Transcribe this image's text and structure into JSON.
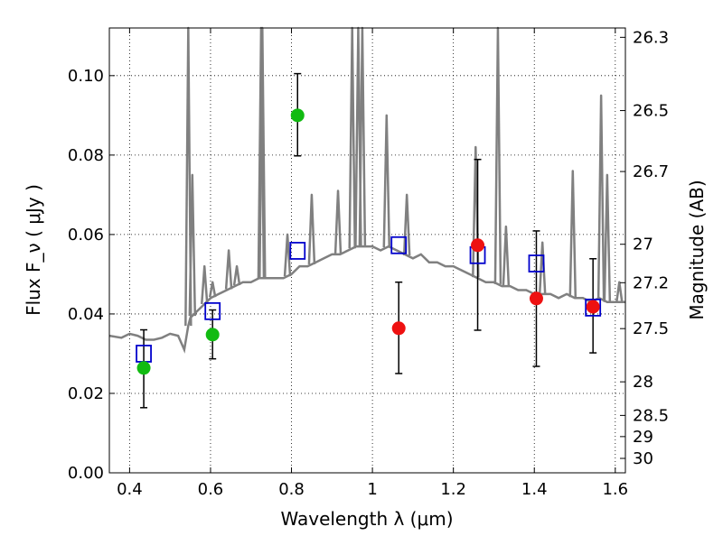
{
  "chart_data": {
    "type": "scatter",
    "title": "",
    "xlabel": "Wavelength  λ (μm)",
    "ylabel": "Flux  F_ν  ( μJy )",
    "y2label": "Magnitude (AB)",
    "xlim": [
      0.35,
      1.625
    ],
    "ylim": [
      0.0,
      0.112
    ],
    "grid": true,
    "x_ticks": [
      0.4,
      0.6,
      0.8,
      1.0,
      1.2,
      1.4,
      1.6
    ],
    "x_tick_labels": [
      "0.4",
      "0.6",
      "0.8",
      "1",
      "1.2",
      "1.4",
      "1.6"
    ],
    "y_ticks": [
      0.0,
      0.02,
      0.04,
      0.06,
      0.08,
      0.1
    ],
    "y_tick_labels": [
      "0.00",
      "0.02",
      "0.04",
      "0.06",
      "0.08",
      "0.10"
    ],
    "y2_tick_labels": [
      "26.3",
      "26.5",
      "26.7",
      "27",
      "27.2",
      "27.5",
      "28",
      "28.5",
      "29",
      "30"
    ],
    "y2_tick_values_ab": [
      26.3,
      26.5,
      26.7,
      27,
      27.2,
      27.5,
      28,
      28.5,
      29,
      30
    ],
    "series": [
      {
        "name": "model spectrum",
        "kind": "line",
        "color": "#808080",
        "x": [
          0.35,
          0.38,
          0.4,
          0.42,
          0.44,
          0.46,
          0.48,
          0.5,
          0.52,
          0.535,
          0.54,
          0.545,
          0.55,
          0.56,
          0.57,
          0.58,
          0.59,
          0.6,
          0.62,
          0.64,
          0.66,
          0.68,
          0.7,
          0.72,
          0.74,
          0.76,
          0.78,
          0.8,
          0.82,
          0.84,
          0.86,
          0.88,
          0.9,
          0.92,
          0.94,
          0.96,
          0.98,
          1.0,
          1.02,
          1.04,
          1.06,
          1.08,
          1.1,
          1.12,
          1.14,
          1.16,
          1.18,
          1.2,
          1.22,
          1.24,
          1.26,
          1.28,
          1.3,
          1.32,
          1.34,
          1.36,
          1.38,
          1.4,
          1.42,
          1.44,
          1.46,
          1.48,
          1.5,
          1.52,
          1.54,
          1.56,
          1.58,
          1.6,
          1.625
        ],
        "y": [
          0.0345,
          0.034,
          0.035,
          0.0345,
          0.0335,
          0.0335,
          0.034,
          0.035,
          0.0345,
          0.031,
          0.034,
          0.037,
          0.039,
          0.04,
          0.041,
          0.042,
          0.043,
          0.044,
          0.045,
          0.046,
          0.047,
          0.048,
          0.048,
          0.049,
          0.049,
          0.049,
          0.049,
          0.05,
          0.052,
          0.052,
          0.053,
          0.054,
          0.055,
          0.055,
          0.056,
          0.057,
          0.057,
          0.057,
          0.056,
          0.057,
          0.056,
          0.055,
          0.054,
          0.055,
          0.053,
          0.053,
          0.052,
          0.052,
          0.051,
          0.05,
          0.049,
          0.048,
          0.048,
          0.047,
          0.047,
          0.046,
          0.046,
          0.045,
          0.045,
          0.045,
          0.044,
          0.045,
          0.044,
          0.044,
          0.043,
          0.044,
          0.043,
          0.043,
          0.043
        ]
      },
      {
        "name": "emission lines",
        "kind": "lines",
        "color": "#808080",
        "lines": [
          {
            "x": 0.545,
            "peak": 0.112
          },
          {
            "x": 0.555,
            "peak": 0.075
          },
          {
            "x": 0.585,
            "peak": 0.052
          },
          {
            "x": 0.605,
            "peak": 0.048
          },
          {
            "x": 0.645,
            "peak": 0.056
          },
          {
            "x": 0.665,
            "peak": 0.052
          },
          {
            "x": 0.725,
            "peak": 0.112
          },
          {
            "x": 0.728,
            "peak": 0.112
          },
          {
            "x": 0.79,
            "peak": 0.06
          },
          {
            "x": 0.85,
            "peak": 0.07
          },
          {
            "x": 0.915,
            "peak": 0.071
          },
          {
            "x": 0.95,
            "peak": 0.112
          },
          {
            "x": 0.965,
            "peak": 0.112
          },
          {
            "x": 0.975,
            "peak": 0.112
          },
          {
            "x": 1.035,
            "peak": 0.09
          },
          {
            "x": 1.085,
            "peak": 0.07
          },
          {
            "x": 1.255,
            "peak": 0.082
          },
          {
            "x": 1.31,
            "peak": 0.112
          },
          {
            "x": 1.33,
            "peak": 0.062
          },
          {
            "x": 1.42,
            "peak": 0.058
          },
          {
            "x": 1.495,
            "peak": 0.076
          },
          {
            "x": 1.565,
            "peak": 0.095
          },
          {
            "x": 1.58,
            "peak": 0.075
          },
          {
            "x": 1.61,
            "peak": 0.048
          }
        ]
      },
      {
        "name": "model photometry",
        "kind": "open-square",
        "color": "#0000cc",
        "x": [
          0.435,
          0.605,
          0.815,
          1.065,
          1.26,
          1.405,
          1.545
        ],
        "y": [
          0.03,
          0.0407,
          0.0559,
          0.0573,
          0.0548,
          0.0527,
          0.0416
        ]
      },
      {
        "name": "observed (green)",
        "kind": "filled-circle",
        "color": "#11bb11",
        "x": [
          0.435,
          0.605,
          0.815
        ],
        "y": [
          0.0264,
          0.0348,
          0.09
        ],
        "yerr_low": [
          0.0164,
          0.0287,
          0.0798
        ],
        "yerr_high": [
          0.036,
          0.041,
          0.1005
        ]
      },
      {
        "name": "observed (red)",
        "kind": "filled-circle",
        "color": "#ee1111",
        "x": [
          1.065,
          1.26,
          1.405,
          1.545
        ],
        "y": [
          0.0364,
          0.0573,
          0.0439,
          0.0418
        ],
        "yerr_low": [
          0.025,
          0.0359,
          0.0268,
          0.0302
        ],
        "yerr_high": [
          0.048,
          0.0789,
          0.0609,
          0.0539
        ]
      }
    ]
  }
}
